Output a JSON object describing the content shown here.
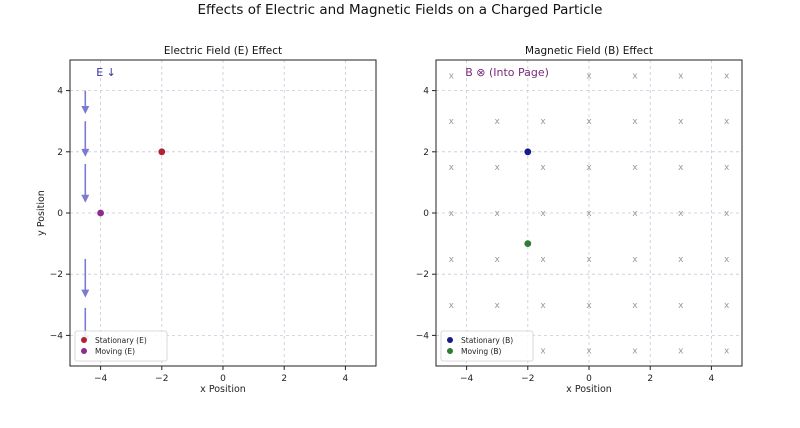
{
  "figure": {
    "suptitle": "Effects of Electric and Magnetic Fields on a Charged Particle"
  },
  "chart_data": [
    {
      "type": "scatter",
      "title": "Electric Field (E) Effect",
      "xlabel": "x Position",
      "ylabel": "y Position",
      "xlim": [
        -5,
        5
      ],
      "ylim": [
        -5,
        5
      ],
      "xticks": [
        -4,
        -2,
        0,
        2,
        4
      ],
      "yticks": [
        -4,
        -2,
        0,
        2,
        4
      ],
      "grid": true,
      "legend_position": "lower-left",
      "field_label": "E ↓",
      "field_color": "#7b7bd6",
      "field_arrows": [
        {
          "x": -4.5,
          "y_from": 4.0,
          "y_to": 3.3
        },
        {
          "x": -4.5,
          "y_from": 3.0,
          "y_to": 1.9
        },
        {
          "x": -4.5,
          "y_from": 1.6,
          "y_to": 0.4
        },
        {
          "x": -4.5,
          "y_from": -1.5,
          "y_to": -2.7
        },
        {
          "x": -4.5,
          "y_from": -3.1,
          "y_to": -4.2
        }
      ],
      "series": [
        {
          "name": "Stationary (E)",
          "color": "#b22234",
          "points": [
            {
              "x": -2,
              "y": 2
            }
          ]
        },
        {
          "name": "Moving (E)",
          "color": "#8e2b8e",
          "points": [
            {
              "x": -4,
              "y": 0
            }
          ]
        }
      ]
    },
    {
      "type": "scatter",
      "title": "Magnetic Field (B) Effect",
      "xlabel": "x Position",
      "ylabel": "",
      "xlim": [
        -5,
        5
      ],
      "ylim": [
        -5,
        5
      ],
      "xticks": [
        -4,
        -2,
        0,
        2,
        4
      ],
      "yticks": [
        -4,
        -2,
        0,
        2,
        4
      ],
      "grid": true,
      "legend_position": "lower-left",
      "field_label": "B ⊗ (Into Page)",
      "field_label_color": "#7a2a7a",
      "field_marker": "x",
      "field_marker_color": "#999999",
      "field_grid_x": [
        -4.5,
        -3,
        -1.5,
        0,
        1.5,
        3,
        4.5
      ],
      "field_grid_y": [
        4.5,
        3,
        1.5,
        0,
        -1.5,
        -3,
        -4.5
      ],
      "series": [
        {
          "name": "Stationary (B)",
          "color": "#1a1a8c",
          "points": [
            {
              "x": -2,
              "y": 2
            }
          ]
        },
        {
          "name": "Moving (B)",
          "color": "#2e7d32",
          "points": [
            {
              "x": -2,
              "y": -1
            }
          ]
        }
      ]
    }
  ]
}
